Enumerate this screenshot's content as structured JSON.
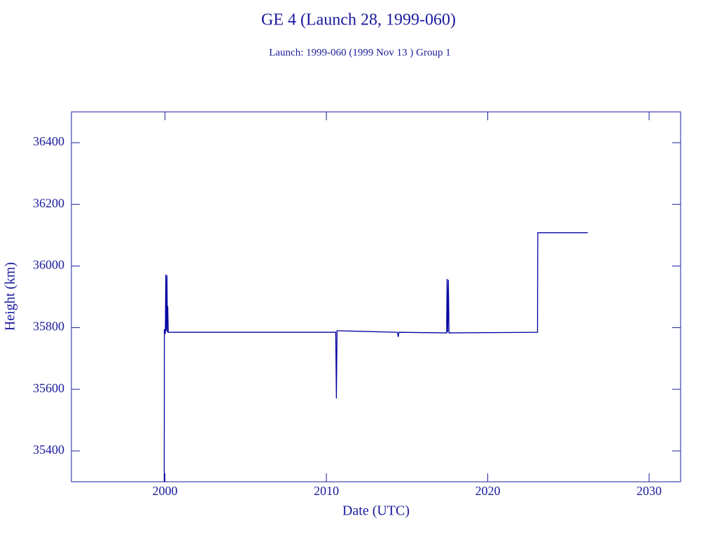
{
  "chart_data": {
    "type": "line",
    "title": "GE 4 (Launch 28, 1999-060)",
    "subtitle": "Launch: 1999-060  (1999 Nov 13 )  Group 1",
    "x_label": "Date (UTC)",
    "y_label": "Height (km)",
    "color": "#0000a0",
    "x": [
      1999.95,
      1999.96,
      2000.02,
      2000.05,
      2000.08,
      2000.12,
      2000.15,
      2000.17,
      2000.2,
      2010.58,
      2010.62,
      2010.66,
      2014.4,
      2014.45,
      2014.5,
      2017.45,
      2017.48,
      2017.52,
      2017.56,
      2017.6,
      2023.08,
      2023.1,
      2026.2
    ],
    "values": [
      35300,
      35795,
      35780,
      35972,
      35790,
      35970,
      35785,
      35870,
      35785,
      35785,
      35570,
      35790,
      35785,
      35770,
      35785,
      35783,
      35958,
      35785,
      35955,
      35783,
      35785,
      36108,
      36108
    ],
    "xlim": [
      1994.2,
      2031.95
    ],
    "ylim": [
      35300,
      36500
    ],
    "xticks": [
      2000,
      2010,
      2020,
      2030
    ],
    "yticks": [
      35400,
      35600,
      35800,
      36000,
      36200,
      36400
    ]
  }
}
